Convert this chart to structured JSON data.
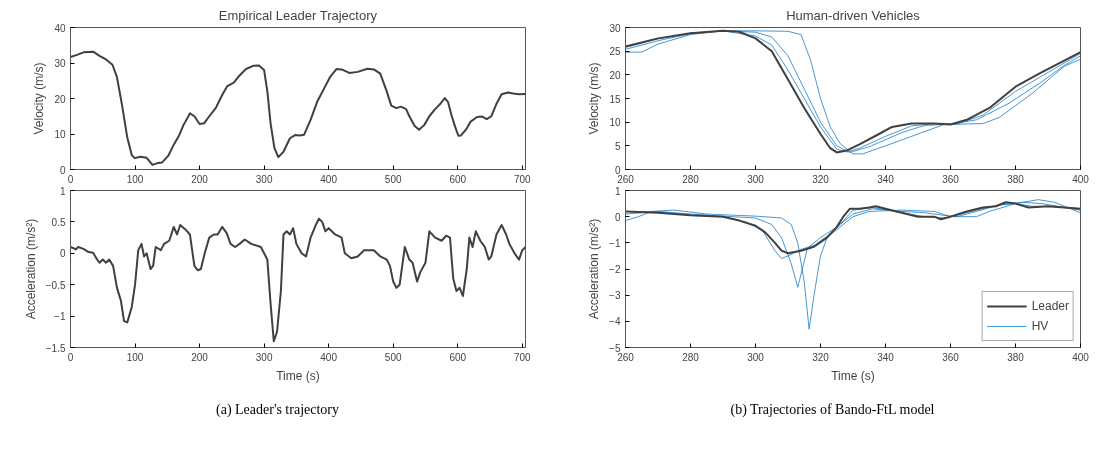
{
  "chart_data": [
    {
      "type": "line",
      "title": "Empirical Leader Trajectory",
      "ylabel": "Velocity (m/s)",
      "xlim": [
        0,
        705
      ],
      "xticks": [
        0,
        100,
        200,
        300,
        400,
        500,
        600,
        700
      ],
      "ylim": [
        0,
        40
      ],
      "yticks": [
        0,
        10,
        20,
        30,
        40
      ],
      "grid": false,
      "legend": false,
      "x": [
        0,
        10,
        20,
        35,
        45,
        55,
        65,
        72,
        80,
        88,
        95,
        100,
        108,
        118,
        127,
        135,
        142,
        152,
        160,
        168,
        175,
        185,
        192,
        200,
        207,
        215,
        225,
        235,
        243,
        253,
        262,
        272,
        283,
        292,
        300,
        305,
        310,
        316,
        322,
        330,
        340,
        348,
        355,
        362,
        372,
        382,
        392,
        402,
        412,
        420,
        432,
        445,
        460,
        470,
        480,
        490,
        497,
        505,
        512,
        520,
        525,
        533,
        540,
        548,
        556,
        565,
        572,
        580,
        585,
        590,
        596,
        601,
        605,
        613,
        620,
        630,
        638,
        645,
        652,
        660,
        668,
        678,
        686,
        695,
        705
      ],
      "series": [
        {
          "color": "#404040",
          "values": [
            31.7,
            32.3,
            33,
            33.2,
            32,
            31,
            29.5,
            26,
            18,
            9,
            4,
            3.2,
            3.6,
            3.3,
            1.3,
            1.8,
            2,
            4,
            7,
            9.5,
            12.5,
            15.8,
            15,
            12.8,
            13,
            15,
            17.3,
            21,
            23.5,
            24.5,
            26.5,
            28.3,
            29.2,
            29.3,
            28,
            22,
            13,
            6,
            3.5,
            5,
            8.8,
            9.7,
            9.6,
            9.8,
            14,
            19,
            22.5,
            26,
            28.3,
            28.2,
            27.2,
            27.5,
            28.4,
            28.2,
            27,
            22,
            18,
            17.3,
            17.7,
            17,
            15,
            12.3,
            11.2,
            12.5,
            15,
            17,
            18.3,
            20.1,
            19,
            15.5,
            12,
            9.5,
            9.6,
            11.3,
            13.5,
            14.8,
            14.9,
            14.2,
            15,
            18.5,
            21.2,
            21.7,
            21.4,
            21.2,
            21.3
          ]
        }
      ]
    },
    {
      "type": "line",
      "xlabel": "Time (s)",
      "ylabel": "Acceleration (m/s²)",
      "xlim": [
        0,
        705
      ],
      "xticks": [
        0,
        100,
        200,
        300,
        400,
        500,
        600,
        700
      ],
      "ylim": [
        -1.5,
        1
      ],
      "yticks": [
        -1.5,
        -1,
        -0.5,
        0,
        0.5,
        1
      ],
      "grid": false,
      "legend": false,
      "annotations": [
        "(a) Leader's trajectory"
      ],
      "x": [
        0,
        5,
        8,
        12,
        20,
        28,
        35,
        40,
        45,
        50,
        55,
        60,
        66,
        72,
        78,
        83,
        88,
        95,
        100,
        105,
        110,
        114,
        118,
        124,
        128,
        132,
        140,
        145,
        153,
        160,
        165,
        170,
        178,
        185,
        192,
        197,
        202,
        208,
        215,
        222,
        228,
        235,
        242,
        248,
        255,
        262,
        270,
        280,
        295,
        305,
        310,
        315,
        320,
        326,
        330,
        335,
        340,
        345,
        350,
        358,
        365,
        372,
        380,
        385,
        390,
        395,
        400,
        410,
        420,
        425,
        435,
        445,
        455,
        470,
        480,
        490,
        495,
        500,
        505,
        510,
        518,
        525,
        530,
        537,
        542,
        550,
        556,
        565,
        575,
        582,
        588,
        593,
        598,
        603,
        608,
        614,
        618,
        623,
        628,
        635,
        642,
        648,
        652,
        660,
        668,
        675,
        680,
        688,
        695,
        700,
        705
      ],
      "series": [
        {
          "color": "#404040",
          "values": [
            0.1,
            0.08,
            0.06,
            0.1,
            0.07,
            0.02,
            0.01,
            -0.08,
            -0.15,
            -0.1,
            -0.15,
            -0.1,
            -0.2,
            -0.55,
            -0.75,
            -1.08,
            -1.1,
            -0.85,
            -0.5,
            0.05,
            0.15,
            -0.05,
            0,
            -0.25,
            -0.2,
            0.1,
            0.05,
            0.15,
            0.2,
            0.42,
            0.3,
            0.45,
            0.38,
            0.3,
            -0.2,
            -0.27,
            -0.25,
            0,
            0.25,
            0.3,
            0.3,
            0.42,
            0.32,
            0.15,
            0.1,
            0.15,
            0.22,
            0.15,
            0.1,
            -0.1,
            -0.8,
            -1.4,
            -1.25,
            -0.6,
            0.3,
            0.35,
            0.3,
            0.4,
            0.15,
            0,
            -0.05,
            0.25,
            0.45,
            0.55,
            0.5,
            0.35,
            0.4,
            0.3,
            0.25,
            0,
            -0.08,
            -0.05,
            0.05,
            0.05,
            -0.05,
            -0.1,
            -0.2,
            -0.45,
            -0.55,
            -0.5,
            0.1,
            -0.1,
            -0.15,
            -0.45,
            -0.3,
            -0.15,
            0.35,
            0.25,
            0.2,
            0.28,
            0.25,
            -0.4,
            -0.6,
            -0.55,
            -0.68,
            -0.25,
            0.25,
            0.1,
            0.35,
            0.2,
            0.1,
            -0.1,
            -0.05,
            0.3,
            0.45,
            0.3,
            0.15,
            0,
            -0.1,
            0.05,
            0.1
          ]
        }
      ]
    },
    {
      "type": "line",
      "title": "Human-driven Vehicles",
      "ylabel": "Velocity (m/s)",
      "xlim": [
        260,
        400
      ],
      "xticks": [
        260,
        280,
        300,
        320,
        340,
        360,
        380,
        400
      ],
      "ylim": [
        0,
        30
      ],
      "yticks": [
        0,
        5,
        10,
        15,
        20,
        25,
        30
      ],
      "grid": false,
      "legend": false,
      "series": [
        {
          "color": "#404040",
          "x": [
            260,
            270,
            280,
            290,
            295,
            300,
            305,
            310,
            315,
            320,
            323,
            325,
            328,
            332,
            338,
            342,
            348,
            355,
            360,
            365,
            372,
            380,
            388,
            395,
            400
          ],
          "values": [
            26,
            27.7,
            28.8,
            29.3,
            29.1,
            27.7,
            25,
            19,
            13,
            7.5,
            4.5,
            3.6,
            4,
            5.3,
            7.5,
            9,
            9.7,
            9.7,
            9.5,
            10.5,
            13,
            17.5,
            20.5,
            23,
            24.8
          ]
        },
        {
          "color": "#1a7cc7",
          "x": [
            260,
            270,
            280,
            290,
            300,
            305,
            310,
            315,
            320,
            325,
            328,
            332,
            340,
            348,
            355,
            362,
            370,
            380,
            390,
            400
          ],
          "values": [
            25.8,
            27.6,
            28.8,
            29.3,
            28.2,
            26.3,
            21,
            15,
            9,
            4.3,
            3.7,
            4.5,
            7,
            9.2,
            9.7,
            9.6,
            11.5,
            16.5,
            20.5,
            24.5
          ]
        },
        {
          "color": "#1a7cc7",
          "x": [
            260,
            270,
            280,
            290,
            300,
            305,
            310,
            315,
            320,
            325,
            329,
            335,
            345,
            352,
            360,
            368,
            378,
            388,
            395,
            400
          ],
          "values": [
            25.4,
            27.2,
            28.7,
            29.3,
            29,
            28,
            24,
            17,
            10,
            5,
            3.6,
            4.8,
            7.8,
            9.3,
            9.6,
            10.5,
            14,
            18.5,
            22,
            24
          ]
        },
        {
          "color": "#1a7cc7",
          "x": [
            260,
            265,
            270,
            280,
            290,
            300,
            310,
            314,
            317,
            320,
            323,
            326,
            330,
            333,
            340,
            350,
            358,
            370,
            375,
            385,
            395,
            400
          ],
          "values": [
            24.8,
            24.8,
            26.5,
            28.5,
            29.3,
            29.3,
            29.2,
            28.5,
            23,
            15,
            9,
            5.5,
            3.3,
            3.3,
            5,
            7.5,
            9.5,
            9.7,
            11,
            16,
            21.8,
            23.3
          ]
        }
      ]
    },
    {
      "type": "line",
      "xlabel": "Time (s)",
      "ylabel": "Acceleration (m/s²)",
      "xlim": [
        260,
        400
      ],
      "xticks": [
        260,
        280,
        300,
        320,
        340,
        360,
        380,
        400
      ],
      "ylim": [
        -5,
        1
      ],
      "yticks": [
        -5,
        -4,
        -3,
        -2,
        -1,
        0,
        1
      ],
      "grid": false,
      "legend": "bottom right",
      "annotations": [
        "(b) Trajectories of Bando-FtL model"
      ],
      "series": [
        {
          "name": "Leader",
          "color": "#404040",
          "x": [
            260,
            270,
            280,
            290,
            295,
            300,
            303,
            306,
            308,
            310,
            314,
            318,
            322,
            325,
            327,
            329,
            332,
            335,
            337,
            340,
            345,
            350,
            355,
            357,
            360,
            365,
            370,
            374,
            377,
            380,
            384,
            390,
            395,
            400
          ],
          "values": [
            0.2,
            0.15,
            0.05,
            0,
            -0.15,
            -0.35,
            -0.6,
            -1,
            -1.3,
            -1.4,
            -1.3,
            -1.15,
            -0.8,
            -0.4,
            0,
            0.3,
            0.3,
            0.35,
            0.4,
            0.3,
            0.15,
            0,
            0,
            -0.1,
            0,
            0.2,
            0.35,
            0.4,
            0.55,
            0.5,
            0.35,
            0.4,
            0.35,
            0.3
          ]
        },
        {
          "name": "HV",
          "color": "#1a7cc7",
          "x": [
            260,
            270,
            280,
            290,
            297,
            302,
            306,
            308,
            310,
            314,
            318,
            322,
            326,
            330,
            336,
            345,
            352,
            358,
            362,
            368,
            375,
            380,
            385,
            392,
            400
          ],
          "values": [
            0.2,
            0.18,
            0.06,
            0,
            -0.2,
            -0.5,
            -1.3,
            -1.6,
            -1.5,
            -1.25,
            -1.1,
            -0.75,
            -0.3,
            0.25,
            0.35,
            0.15,
            0,
            -0.05,
            0.05,
            0.25,
            0.45,
            0.5,
            0.4,
            0.38,
            0.3
          ]
        },
        {
          "color": "#1a7cc7",
          "x": [
            260,
            270,
            280,
            290,
            300,
            305,
            308,
            311,
            313,
            314,
            316,
            320,
            325,
            330,
            336,
            345,
            352,
            358,
            362,
            368,
            375,
            382,
            388,
            395,
            400
          ],
          "values": [
            0.1,
            0.2,
            0.1,
            0.02,
            -0.05,
            -0.3,
            -0.8,
            -1.8,
            -2.7,
            -2.2,
            -1.2,
            -0.8,
            -0.4,
            0.1,
            0.3,
            0.2,
            0.15,
            0.05,
            0,
            0.2,
            0.45,
            0.55,
            0.5,
            0.35,
            0.25
          ]
        },
        {
          "color": "#1a7cc7",
          "x": [
            260,
            264,
            268,
            275,
            285,
            300,
            308,
            311,
            313,
            315,
            316.5,
            318,
            320,
            322,
            326,
            330,
            335,
            345,
            355,
            360,
            368,
            372,
            380,
            387,
            392,
            397,
            400
          ],
          "values": [
            -0.15,
            0,
            0.2,
            0.25,
            0.1,
            0.02,
            -0.05,
            -0.3,
            -1,
            -2.5,
            -4.3,
            -3,
            -1.5,
            -0.8,
            -0.4,
            0,
            0.2,
            0.25,
            0.2,
            0,
            0,
            0.2,
            0.5,
            0.65,
            0.55,
            0.3,
            0.15
          ]
        }
      ]
    }
  ]
}
